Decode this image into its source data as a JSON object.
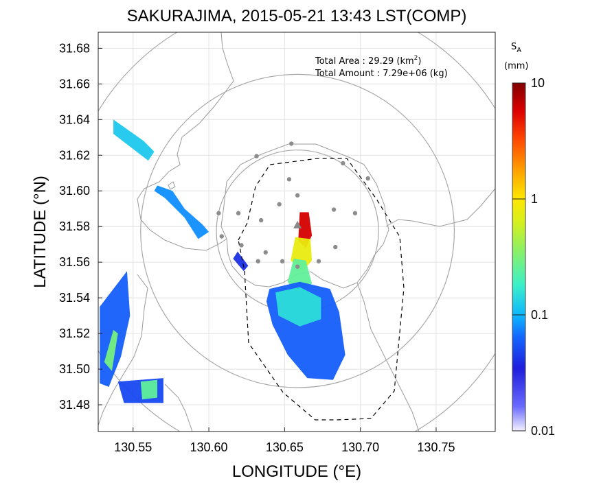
{
  "chart_data": {
    "type": "heatmap",
    "title": "SAKURAJIMA, 2015-05-21 13:43 LST(COMP)",
    "xlabel": "LONGITUDE (°E)",
    "ylabel": "LATITUDE (°N)",
    "xlim": [
      130.527,
      130.789
    ],
    "ylim": [
      31.465,
      31.689
    ],
    "xticks": [
      "130.55",
      "130.60",
      "130.65",
      "130.70",
      "130.75"
    ],
    "yticks": [
      "31.48",
      "31.50",
      "31.52",
      "31.54",
      "31.56",
      "31.58",
      "31.60",
      "31.62",
      "31.64",
      "31.66",
      "31.68"
    ],
    "grid": true,
    "annotations": {
      "area_label": "Total Area   : 29.29 (km",
      "area_sup": "2",
      "area_close": ")",
      "amount_label": "Total Amount : 7.29e+06 (kg)"
    },
    "colorbar": {
      "label_main": "S",
      "label_sub": "A",
      "unit": "(mm)",
      "scale": "log",
      "range": [
        0.01,
        10
      ],
      "ticks": [
        "10",
        "1",
        "0.1",
        "0.01"
      ]
    },
    "range_circles": [
      {
        "center": [
          130.6585,
          31.5775
        ],
        "radius_deg_lon": 0.0535
      },
      {
        "center": [
          130.6585,
          31.5775
        ],
        "radius_deg_lon": 0.1035
      },
      {
        "center": [
          130.6585,
          31.5775
        ],
        "radius_deg_lon": 0.1535
      }
    ],
    "vent": [
      130.6585,
      31.5805
    ],
    "stations": [
      [
        130.6585,
        31.5975
      ],
      [
        130.653,
        31.6065
      ],
      [
        130.6315,
        31.6195
      ],
      [
        130.6545,
        31.6265
      ],
      [
        130.6885,
        31.6155
      ],
      [
        130.705,
        31.607
      ],
      [
        130.6965,
        31.5875
      ],
      [
        130.6825,
        31.5895
      ],
      [
        130.6465,
        31.5925
      ],
      [
        130.6345,
        31.5835
      ],
      [
        130.6195,
        31.5875
      ],
      [
        130.6065,
        31.5875
      ],
      [
        130.6085,
        31.5745
      ],
      [
        130.6215,
        31.5695
      ],
      [
        130.6375,
        31.5655
      ],
      [
        130.6835,
        31.5685
      ],
      [
        130.6725,
        31.5605
      ],
      [
        130.6585,
        31.5575
      ],
      [
        130.6485,
        31.5605
      ],
      [
        130.6325,
        31.5605
      ]
    ],
    "plume": [
      {
        "polygon": [
          [
            130.66,
            31.588
          ],
          [
            130.666,
            31.588
          ],
          [
            130.668,
            31.575
          ],
          [
            130.664,
            31.568
          ],
          [
            130.659,
            31.572
          ]
        ],
        "value": 6
      },
      {
        "polygon": [
          [
            130.657,
            31.574
          ],
          [
            130.667,
            31.573
          ],
          [
            130.668,
            31.561
          ],
          [
            130.662,
            31.555
          ],
          [
            130.654,
            31.561
          ]
        ],
        "value": 0.8
      },
      {
        "polygon": [
          [
            130.656,
            31.562
          ],
          [
            130.664,
            31.561
          ],
          [
            130.668,
            31.548
          ],
          [
            130.658,
            31.542
          ],
          [
            130.652,
            31.549
          ]
        ],
        "value": 0.25
      },
      {
        "polygon": [
          [
            130.64,
            31.545
          ],
          [
            130.66,
            31.549
          ],
          [
            130.68,
            31.545
          ],
          [
            130.686,
            31.532
          ],
          [
            130.69,
            31.508
          ],
          [
            130.682,
            31.494
          ],
          [
            130.665,
            31.495
          ],
          [
            130.652,
            31.508
          ],
          [
            130.642,
            31.525
          ],
          [
            130.638,
            31.538
          ]
        ],
        "value": 0.06
      },
      {
        "polygon": [
          [
            130.644,
            31.543
          ],
          [
            130.66,
            31.546
          ],
          [
            130.674,
            31.54
          ],
          [
            130.674,
            31.528
          ],
          [
            130.66,
            31.524
          ],
          [
            130.646,
            31.53
          ]
        ],
        "value": 0.15
      },
      {
        "polygon": [
          [
            130.528,
            31.535
          ],
          [
            130.546,
            31.555
          ],
          [
            130.548,
            31.53
          ],
          [
            130.542,
            31.507
          ],
          [
            130.534,
            31.49
          ],
          [
            130.528,
            31.492
          ]
        ],
        "value": 0.06
      },
      {
        "polygon": [
          [
            130.531,
            31.504
          ],
          [
            130.537,
            31.522
          ],
          [
            130.54,
            31.52
          ],
          [
            130.536,
            31.499
          ]
        ],
        "value": 0.3
      },
      {
        "polygon": [
          [
            130.54,
            31.493
          ],
          [
            130.57,
            31.495
          ],
          [
            130.57,
            31.481
          ],
          [
            130.544,
            31.481
          ]
        ],
        "value": 0.05
      },
      {
        "polygon": [
          [
            130.555,
            31.493
          ],
          [
            130.566,
            31.494
          ],
          [
            130.566,
            31.484
          ],
          [
            130.556,
            31.483
          ]
        ],
        "value": 0.25
      },
      {
        "polygon": [
          [
            130.537,
            31.64
          ],
          [
            130.557,
            31.628
          ],
          [
            130.564,
            31.622
          ],
          [
            130.56,
            31.617
          ],
          [
            130.537,
            31.632
          ]
        ],
        "value": 0.12
      },
      {
        "polygon": [
          [
            130.566,
            31.603
          ],
          [
            130.576,
            31.6
          ],
          [
            130.584,
            31.59
          ],
          [
            130.596,
            31.581
          ],
          [
            130.6,
            31.577
          ],
          [
            130.593,
            31.573
          ],
          [
            130.584,
            31.585
          ],
          [
            130.571,
            31.596
          ],
          [
            130.564,
            31.6
          ]
        ],
        "value": 0.08
      },
      {
        "polygon": [
          [
            130.619,
            31.566
          ],
          [
            130.626,
            31.558
          ],
          [
            130.623,
            31.555
          ],
          [
            130.616,
            31.562
          ]
        ],
        "value": 0.04
      }
    ]
  }
}
